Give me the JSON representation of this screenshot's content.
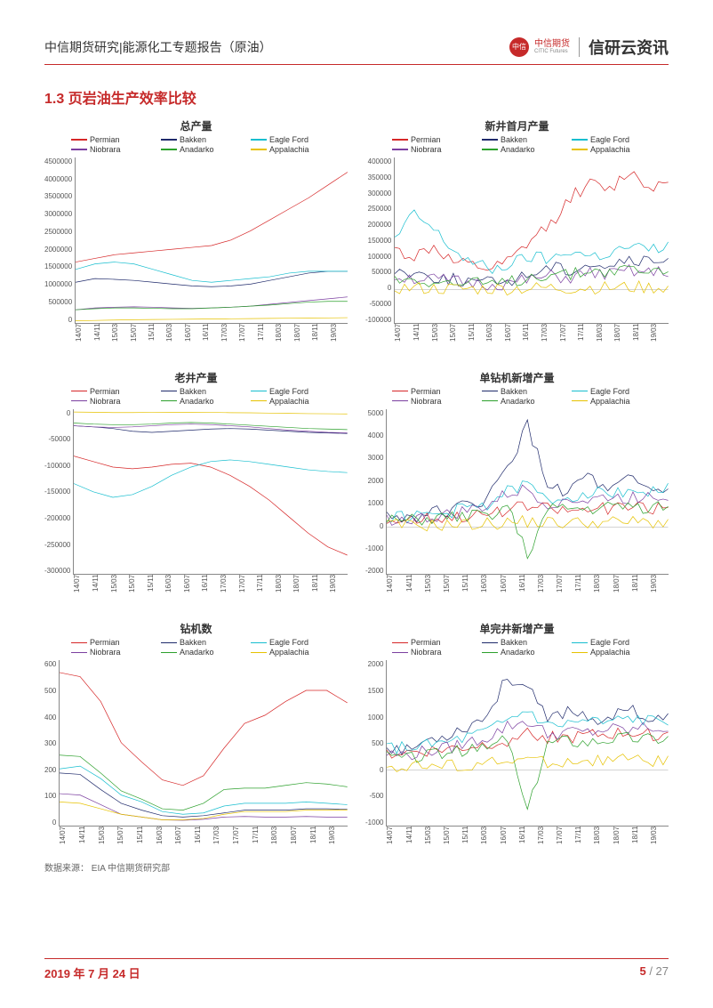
{
  "brand_color": "#c62a2a",
  "header": {
    "left": "中信期货研究|能源化工专题报告（原油）",
    "logo_text": "中信",
    "brand_cn": "中信期货",
    "brand_en": "CITIC Futures",
    "brand_big": "信研云资讯"
  },
  "section_title": "1.3 页岩油生产效率比较",
  "source": "数据来源：  EIA 中信期货研究部",
  "footer": {
    "date": "2019 年 7 月 24 日",
    "page": "5",
    "sep": " / ",
    "total": "27"
  },
  "x_labels": [
    "14/07",
    "14/11",
    "15/03",
    "15/07",
    "15/11",
    "16/03",
    "16/07",
    "16/11",
    "17/03",
    "17/07",
    "17/11",
    "18/03",
    "18/07",
    "18/11",
    "19/03"
  ],
  "series_meta": [
    {
      "key": "Permian",
      "color": "#d62728"
    },
    {
      "key": "Bakken",
      "color": "#1f2a6b"
    },
    {
      "key": "Eagle Ford",
      "color": "#17becf"
    },
    {
      "key": "Niobrara",
      "color": "#7b3fa0"
    },
    {
      "key": "Anadarko",
      "color": "#2ca02c"
    },
    {
      "key": "Appalachia",
      "color": "#e6c200"
    }
  ],
  "charts": [
    {
      "title": "总产量",
      "ylim": [
        0,
        4500000
      ],
      "yticks": [
        0,
        500000,
        1000000,
        1500000,
        2000000,
        2500000,
        3000000,
        3500000,
        4000000,
        4500000
      ],
      "series": {
        "Permian": [
          1650000,
          1750000,
          1850000,
          1900000,
          1950000,
          2000000,
          2050000,
          2100000,
          2250000,
          2500000,
          2800000,
          3100000,
          3400000,
          3750000,
          4100000
        ],
        "Bakken": [
          1100000,
          1200000,
          1180000,
          1150000,
          1100000,
          1050000,
          1000000,
          980000,
          1000000,
          1050000,
          1150000,
          1250000,
          1350000,
          1400000,
          1400000
        ],
        "Eagle Ford": [
          1450000,
          1600000,
          1650000,
          1600000,
          1450000,
          1300000,
          1150000,
          1100000,
          1150000,
          1200000,
          1250000,
          1350000,
          1400000,
          1400000,
          1400000
        ],
        "Niobrara": [
          350000,
          400000,
          420000,
          430000,
          420000,
          400000,
          390000,
          400000,
          420000,
          450000,
          500000,
          550000,
          600000,
          650000,
          700000
        ],
        "Anadarko": [
          350000,
          380000,
          400000,
          400000,
          390000,
          380000,
          380000,
          400000,
          420000,
          450000,
          480000,
          520000,
          560000,
          580000,
          580000
        ],
        "Appalachia": [
          50000,
          60000,
          70000,
          80000,
          85000,
          90000,
          95000,
          100000,
          105000,
          110000,
          115000,
          120000,
          125000,
          130000,
          135000
        ]
      }
    },
    {
      "title": "新井首月产量",
      "ylim": [
        -100000,
        400000
      ],
      "yticks": [
        -100000,
        -50000,
        0,
        50000,
        100000,
        150000,
        200000,
        250000,
        300000,
        350000,
        400000
      ],
      "noisy": true,
      "series": {
        "Permian": [
          120000,
          100000,
          130000,
          80000,
          70000,
          60000,
          90000,
          150000,
          200000,
          280000,
          320000,
          300000,
          360000,
          310000,
          330000
        ],
        "Bakken": [
          60000,
          50000,
          40000,
          30000,
          25000,
          20000,
          30000,
          50000,
          70000,
          60000,
          80000,
          70000,
          90000,
          80000,
          90000
        ],
        "Eagle Ford": [
          150000,
          230000,
          180000,
          120000,
          80000,
          60000,
          80000,
          100000,
          90000,
          120000,
          100000,
          110000,
          130000,
          120000,
          130000
        ],
        "Niobrara": [
          40000,
          35000,
          30000,
          25000,
          20000,
          15000,
          20000,
          30000,
          40000,
          35000,
          50000,
          45000,
          55000,
          50000,
          55000
        ],
        "Anadarko": [
          30000,
          35000,
          25000,
          20000,
          18000,
          15000,
          25000,
          40000,
          50000,
          45000,
          60000,
          55000,
          65000,
          55000,
          60000
        ],
        "Appalachia": [
          5000,
          4000,
          3000,
          2000,
          2000,
          2000,
          3000,
          4000,
          5000,
          4000,
          6000,
          5000,
          7000,
          6000,
          7000
        ]
      }
    },
    {
      "title": "老井产量",
      "ylim": [
        -300000,
        0
      ],
      "yticks": [
        -300000,
        -250000,
        -200000,
        -150000,
        -100000,
        -50000,
        0
      ],
      "series": {
        "Permian": [
          -85000,
          -95000,
          -105000,
          -108000,
          -105000,
          -100000,
          -98000,
          -105000,
          -120000,
          -140000,
          -165000,
          -195000,
          -225000,
          -250000,
          -265000
        ],
        "Bakken": [
          -30000,
          -32000,
          -35000,
          -40000,
          -42000,
          -40000,
          -38000,
          -36000,
          -35000,
          -36000,
          -38000,
          -40000,
          -42000,
          -43000,
          -44000
        ],
        "Eagle Ford": [
          -135000,
          -150000,
          -160000,
          -155000,
          -140000,
          -120000,
          -105000,
          -95000,
          -92000,
          -95000,
          -100000,
          -105000,
          -110000,
          -113000,
          -115000
        ],
        "Niobrara": [
          -30000,
          -32000,
          -33000,
          -32000,
          -30000,
          -28000,
          -27000,
          -28000,
          -30000,
          -32000,
          -35000,
          -38000,
          -40000,
          -42000,
          -43000
        ],
        "Anadarko": [
          -25000,
          -27000,
          -28000,
          -28000,
          -27000,
          -25000,
          -24000,
          -25000,
          -27000,
          -29000,
          -31000,
          -33000,
          -35000,
          -36000,
          -37000
        ],
        "Appalachia": [
          -5000,
          -5500,
          -6000,
          -6000,
          -5800,
          -5500,
          -5500,
          -5800,
          -6200,
          -6500,
          -7000,
          -7500,
          -8000,
          -8200,
          -8500
        ]
      }
    },
    {
      "title": "单钻机新增产量",
      "ylim": [
        -2000,
        5000
      ],
      "yticks": [
        -2000,
        -1000,
        0,
        1000,
        2000,
        3000,
        4000,
        5000
      ],
      "noisy": true,
      "series": {
        "Permian": [
          300,
          350,
          400,
          450,
          500,
          550,
          700,
          900,
          800,
          700,
          750,
          800,
          850,
          800,
          850
        ],
        "Bakken": [
          500,
          400,
          600,
          700,
          900,
          1200,
          2500,
          4300,
          1800,
          1500,
          2200,
          1400,
          2000,
          1600,
          1500
        ],
        "Eagle Ford": [
          400,
          450,
          500,
          600,
          800,
          1000,
          1500,
          1800,
          1100,
          1300,
          1500,
          1400,
          1600,
          1500,
          1600
        ],
        "Niobrara": [
          350,
          300,
          400,
          500,
          700,
          900,
          1400,
          1600,
          1000,
          1200,
          1100,
          1300,
          1200,
          1400,
          1300
        ],
        "Anadarko": [
          300,
          250,
          350,
          400,
          450,
          500,
          900,
          -1200,
          700,
          800,
          750,
          850,
          900,
          850,
          900
        ],
        "Appalachia": [
          100,
          80,
          90,
          100,
          120,
          150,
          200,
          250,
          200,
          180,
          220,
          200,
          230,
          210,
          220
        ]
      }
    },
    {
      "title": "钻机数",
      "ylim": [
        0,
        600
      ],
      "yticks": [
        0,
        100,
        200,
        300,
        400,
        500,
        600
      ],
      "series": {
        "Permian": [
          555,
          540,
          450,
          300,
          230,
          165,
          145,
          180,
          280,
          370,
          400,
          450,
          490,
          490,
          445
        ],
        "Bakken": [
          190,
          185,
          130,
          80,
          55,
          35,
          30,
          35,
          45,
          55,
          55,
          55,
          60,
          60,
          58
        ],
        "Eagle Ford": [
          205,
          215,
          170,
          110,
          85,
          50,
          40,
          45,
          70,
          80,
          80,
          80,
          85,
          80,
          75
        ],
        "Niobrara": [
          115,
          110,
          75,
          40,
          30,
          20,
          18,
          22,
          30,
          32,
          30,
          30,
          32,
          30,
          30
        ],
        "Anadarko": [
          255,
          250,
          190,
          125,
          95,
          60,
          55,
          80,
          130,
          135,
          135,
          145,
          155,
          150,
          140
        ],
        "Appalachia": [
          85,
          80,
          60,
          40,
          30,
          20,
          20,
          25,
          40,
          50,
          50,
          50,
          55,
          55,
          55
        ]
      }
    },
    {
      "title": "单完井新增产量",
      "ylim": [
        -1000,
        2000
      ],
      "yticks": [
        -1000,
        -500,
        0,
        500,
        1000,
        1500,
        2000
      ],
      "noisy": true,
      "series": {
        "Permian": [
          300,
          320,
          350,
          380,
          420,
          480,
          550,
          700,
          600,
          580,
          620,
          650,
          680,
          650,
          670
        ],
        "Bakken": [
          450,
          350,
          550,
          650,
          800,
          1000,
          1700,
          1500,
          900,
          1100,
          1000,
          850,
          1200,
          900,
          950
        ],
        "Eagle Ford": [
          400,
          420,
          450,
          500,
          600,
          700,
          900,
          1100,
          800,
          850,
          900,
          850,
          950,
          900,
          920
        ],
        "Niobrara": [
          300,
          280,
          350,
          400,
          500,
          600,
          800,
          900,
          650,
          700,
          680,
          750,
          720,
          780,
          750
        ],
        "Anadarko": [
          250,
          220,
          280,
          320,
          350,
          400,
          600,
          -800,
          500,
          550,
          520,
          580,
          600,
          580,
          600
        ],
        "Appalachia": [
          80,
          70,
          75,
          85,
          100,
          120,
          160,
          200,
          160,
          150,
          180,
          170,
          190,
          180,
          185
        ]
      }
    }
  ]
}
